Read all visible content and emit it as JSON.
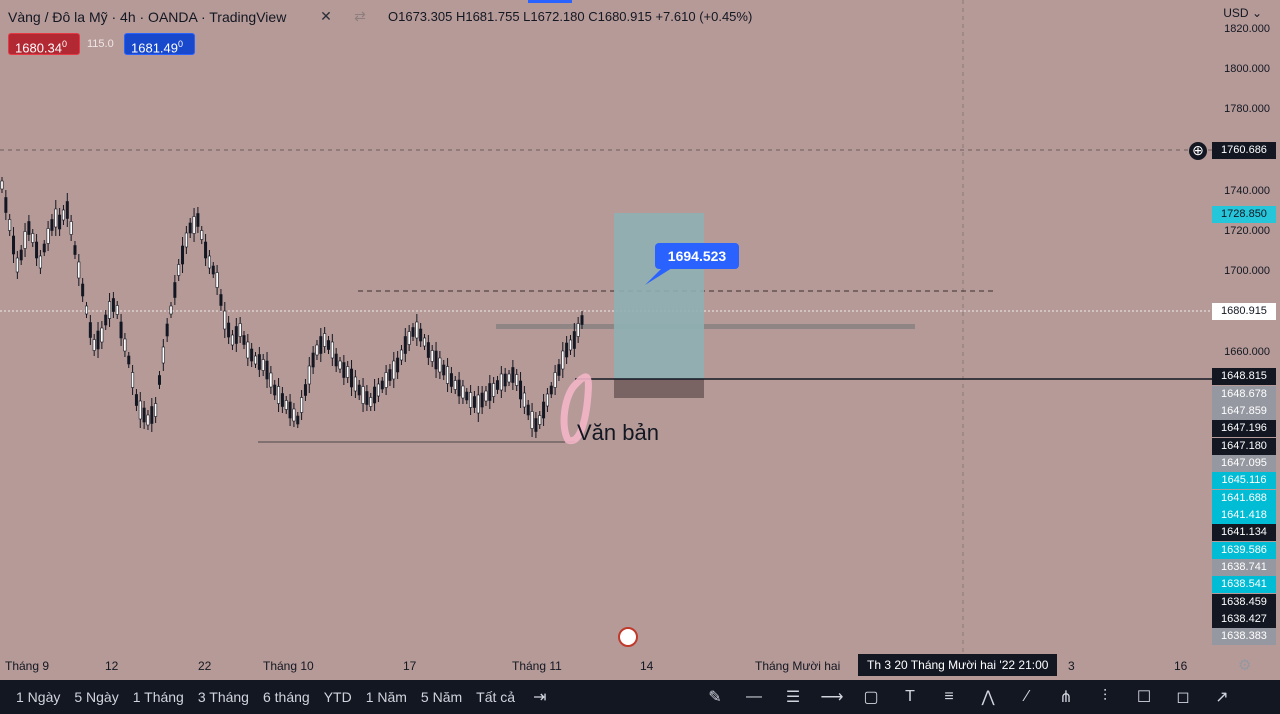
{
  "header": {
    "symbol_title": "Vàng / Đô la Mỹ · 4h · OANDA · TradingView",
    "ohlc": "O1673.305  H1681.755  L1672.180  C1680.915  +7.610 (+0.45%)"
  },
  "trade": {
    "sell_price": "1680.34",
    "sell_suffix": "0",
    "spread": "115.0",
    "buy_price": "1681.49",
    "buy_suffix": "0"
  },
  "price_axis": {
    "currency": "USD",
    "ticks": [
      "1820.000",
      "1800.000",
      "1780.000",
      "1740.000",
      "1720.000",
      "1700.000",
      "1660.000"
    ],
    "badges": [
      {
        "text": "1760.686",
        "bg": "#131722",
        "fg": "#ffffff"
      },
      {
        "text": "1728.850",
        "bg": "#26c6da",
        "fg": "#131722"
      },
      {
        "text": "1680.915",
        "bg": "#ffffff",
        "fg": "#131722"
      },
      {
        "text": "1648.815",
        "bg": "#131722",
        "fg": "#ffffff"
      },
      {
        "text": "1648.678",
        "bg": "#9598a1",
        "fg": "#ffffff"
      },
      {
        "text": "1647.859",
        "bg": "#9598a1",
        "fg": "#ffffff"
      },
      {
        "text": "1647.196",
        "bg": "#131722",
        "fg": "#ffffff"
      },
      {
        "text": "1647.180",
        "bg": "#131722",
        "fg": "#ffffff"
      },
      {
        "text": "1647.095",
        "bg": "#9598a1",
        "fg": "#ffffff"
      },
      {
        "text": "1645.116",
        "bg": "#00bcd4",
        "fg": "#ffffff"
      },
      {
        "text": "1641.688",
        "bg": "#00bcd4",
        "fg": "#ffffff"
      },
      {
        "text": "1641.418",
        "bg": "#00bcd4",
        "fg": "#ffffff"
      },
      {
        "text": "1641.134",
        "bg": "#131722",
        "fg": "#ffffff"
      },
      {
        "text": "1639.586",
        "bg": "#00bcd4",
        "fg": "#ffffff"
      },
      {
        "text": "1638.741",
        "bg": "#9598a1",
        "fg": "#ffffff"
      },
      {
        "text": "1638.541",
        "bg": "#00bcd4",
        "fg": "#ffffff"
      },
      {
        "text": "1638.459",
        "bg": "#131722",
        "fg": "#ffffff"
      },
      {
        "text": "1638.427",
        "bg": "#131722",
        "fg": "#ffffff"
      },
      {
        "text": "1638.383",
        "bg": "#9598a1",
        "fg": "#ffffff"
      }
    ]
  },
  "time_axis": {
    "labels": [
      "Tháng 9",
      "12",
      "22",
      "Tháng 10",
      "17",
      "Tháng 11",
      "14",
      "Tháng Mười hai",
      "3",
      "16"
    ],
    "crosshair_label": "Th 3 20 Tháng Mười hai '22   21:00"
  },
  "annotations": {
    "target_label": "1694.523",
    "text_label": "Văn bản"
  },
  "timeframes": [
    "1 Ngày",
    "5 Ngày",
    "1 Tháng",
    "3 Tháng",
    "6 tháng",
    "YTD",
    "1 Năm",
    "5 Năm",
    "Tất cả"
  ],
  "tools": [
    "brush-icon",
    "horizontal-line-icon",
    "parallel-channel-icon",
    "horizontal-ray-icon",
    "rectangle-icon",
    "text-tool-icon",
    "fib-icon",
    "pattern-icon",
    "trend-line-icon",
    "pitchfork-icon",
    "long-position-icon",
    "callout-icon",
    "comment-icon",
    "arrow-icon"
  ],
  "colors": {
    "background": "#b59a98",
    "sell": "#b22833",
    "buy": "#1848cc",
    "target_zone": "#8fb0b2",
    "stop_zone": "#7a6463",
    "candle": "#131722"
  }
}
